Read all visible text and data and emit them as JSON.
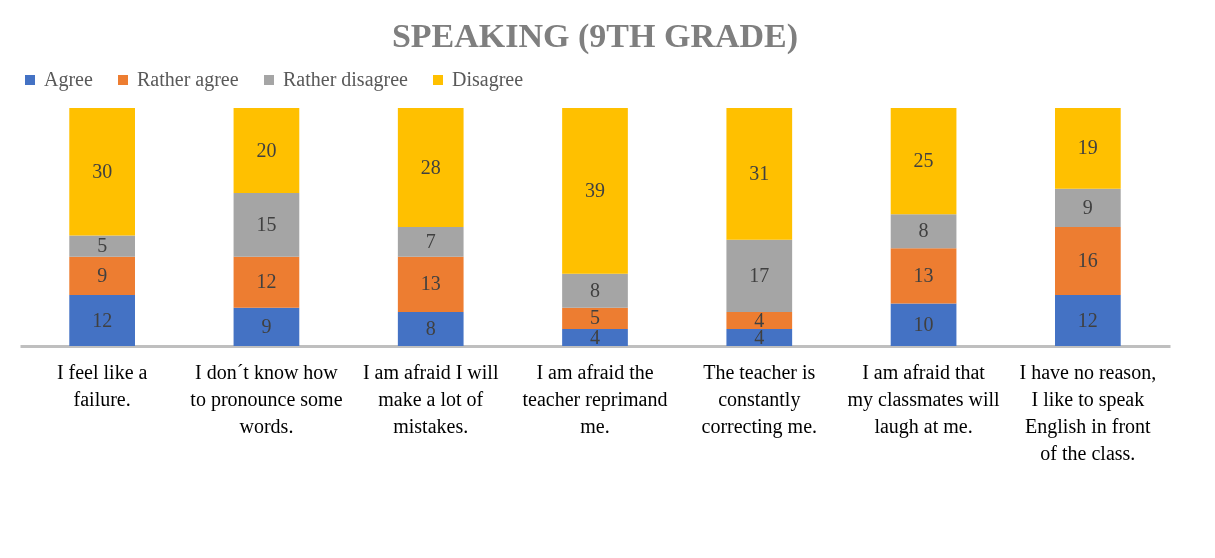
{
  "chart_data": {
    "type": "bar",
    "stacked": true,
    "title": "SPEAKING (9TH GRADE)",
    "data_labels": true,
    "legend": "top",
    "grid": false,
    "categories": [
      "I feel like a failure.",
      "I don´t know how to pronounce some words.",
      "I am afraid I will make a lot of mistakes.",
      "I am afraid the teacher reprimand me.",
      "The teacher is constantly correcting me.",
      "I am afraid that my classmates will laugh at me.",
      "I have no reason, I like to speak English in front of the class."
    ],
    "series": [
      {
        "name": "Agree",
        "color": "#4472c4",
        "values": [
          12,
          9,
          8,
          4,
          4,
          10,
          12
        ]
      },
      {
        "name": "Rather agree",
        "color": "#ed7d31",
        "values": [
          9,
          12,
          13,
          5,
          4,
          13,
          16
        ]
      },
      {
        "name": "Rather disagree",
        "color": "#a5a5a5",
        "values": [
          5,
          15,
          7,
          8,
          17,
          8,
          9
        ]
      },
      {
        "name": "Disagree",
        "color": "#ffc000",
        "values": [
          30,
          20,
          28,
          39,
          31,
          25,
          19
        ]
      }
    ]
  }
}
